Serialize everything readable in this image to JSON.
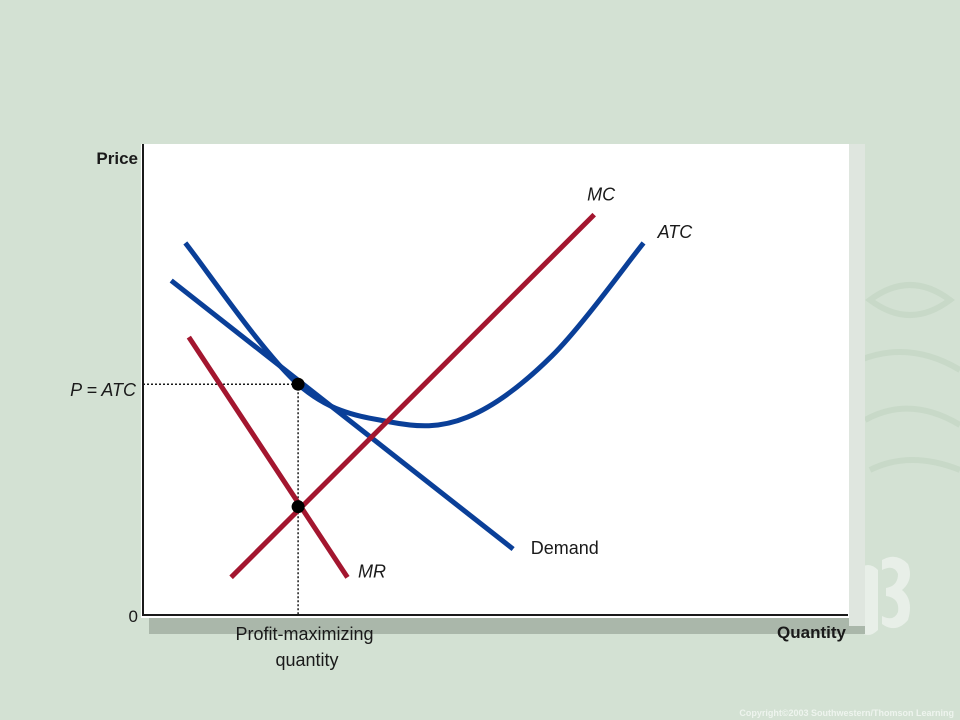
{
  "chart_data": {
    "type": "line",
    "ylabel": "Price",
    "xlabel": "Quantity",
    "origin_label": "0",
    "y_mark_label": "P = ATC",
    "x_mark_label": [
      "Profit-maximizing",
      "quantity"
    ],
    "xlim": [
      0,
      100
    ],
    "ylim": [
      0,
      100
    ],
    "colors": {
      "demand": "#0a3f98",
      "atc": "#0a3f98",
      "mc": "#a3162f",
      "mr": "#a3162f",
      "axis": "#1a1a1a",
      "panel": "#ffffff"
    },
    "series": [
      {
        "name": "MC",
        "label_at": [
          63,
          88
        ],
        "points": [
          [
            12.5,
            8
          ],
          [
            64,
            85
          ]
        ]
      },
      {
        "name": "ATC",
        "label_at": [
          73,
          80
        ],
        "points": [
          [
            6,
            79
          ],
          [
            22,
            49
          ],
          [
            35,
            41
          ],
          [
            46,
            42
          ],
          [
            58,
            55
          ],
          [
            71,
            79
          ]
        ]
      },
      {
        "name": "Demand",
        "label_at": [
          55,
          13
        ],
        "points": [
          [
            4,
            71
          ],
          [
            52.5,
            14
          ]
        ]
      },
      {
        "name": "MR",
        "label_at": [
          30.5,
          8
        ],
        "points": [
          [
            6.5,
            59
          ],
          [
            29,
            8
          ]
        ]
      }
    ],
    "points": [
      [
        22,
        49
      ],
      [
        22,
        23
      ]
    ],
    "guide_x": 22,
    "guide_y": 49
  },
  "footer": {
    "copyright": "Copyright©2003  Southwestern/Thomson Learning"
  }
}
